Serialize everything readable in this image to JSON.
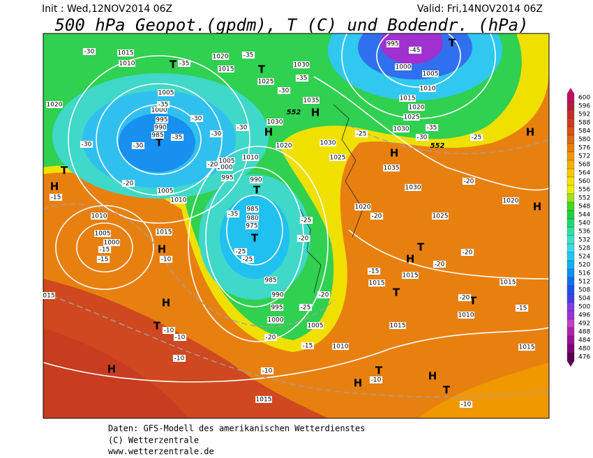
{
  "header": {
    "init": "Init : Wed,12NOV2014 06Z",
    "valid": "Valid: Fri,14NOV2014 06Z",
    "title": "500 hPa Geopot.(gpdm), T (C) und Bodendr. (hPa)"
  },
  "colorbar": {
    "ticks": [
      600,
      596,
      592,
      588,
      584,
      580,
      576,
      572,
      568,
      564,
      560,
      556,
      552,
      548,
      544,
      540,
      536,
      532,
      528,
      524,
      520,
      516,
      512,
      508,
      504,
      500,
      496,
      492,
      488,
      484,
      480,
      476
    ],
    "colors": [
      "#c01060",
      "#b02040",
      "#c03028",
      "#d03c20",
      "#d85018",
      "#e06810",
      "#e88000",
      "#f09800",
      "#f8b000",
      "#f8c800",
      "#f8e000",
      "#e8f000",
      "#a0e020",
      "#40d820",
      "#20d040",
      "#20d870",
      "#30e0a0",
      "#40e0c8",
      "#40d8e8",
      "#20c8f0",
      "#10b0f0",
      "#1090f0",
      "#1070f0",
      "#2050e8",
      "#4040e8",
      "#8040e0",
      "#a030d8",
      "#c040c8",
      "#b020b0",
      "#9a1097",
      "#80007a",
      "#5a0050"
    ]
  },
  "map": {
    "pressure_centers": [
      "T",
      "T",
      "H",
      "T",
      "H",
      "H",
      "H",
      "H",
      "H",
      "T",
      "H",
      "H",
      "T",
      "H",
      "T",
      "H",
      "H",
      "T",
      "T",
      "T",
      "H",
      "T",
      "T",
      "T",
      "T"
    ],
    "isobar_labels": [
      "1015",
      "1010",
      "1020",
      "1015",
      "1030",
      "1025",
      "1005",
      "1000",
      "995",
      "990",
      "985",
      "1020",
      "1035",
      "1030",
      "1020",
      "1030",
      "1025",
      "1035",
      "1030",
      "1005",
      "1000",
      "1010",
      "995",
      "990",
      "985",
      "980",
      "975",
      "1005",
      "1010",
      "1010",
      "1005",
      "1000",
      "1015",
      "985",
      "990",
      "995",
      "1000",
      "1005",
      "1010",
      "1015",
      "1015",
      "1015",
      "1010",
      "1015",
      "1015",
      "1020",
      "1020",
      "1025",
      "995",
      "1000",
      "1005",
      "1010",
      "1015",
      "1020",
      "1025",
      "1030",
      "1015",
      "015"
    ],
    "height_labels": [
      "552",
      "552"
    ],
    "temperature_labels": [
      "-30",
      "-35",
      "-35",
      "-35",
      "-30",
      "-35",
      "-30",
      "-35",
      "-30",
      "-30",
      "-30",
      "-20",
      "-20",
      "-15",
      "-30",
      "-35",
      "-25",
      "-25",
      "-25",
      "-15",
      "-15",
      "-10",
      "-20",
      "-25",
      "-25",
      "-35",
      "-30",
      "-45",
      "-20",
      "-20",
      "-15",
      "-20",
      "-20",
      "-20",
      "-15",
      "-20",
      "-25",
      "-20",
      "-15",
      "-10",
      "-10",
      "-10",
      "-10",
      "-10",
      "-10"
    ]
  },
  "footer": {
    "line1": "Daten: GFS-Modell des amerikanischen Wetterdienstes",
    "line2": "(C) Wetterzentrale",
    "line3": "www.wetterzentrale.de"
  }
}
